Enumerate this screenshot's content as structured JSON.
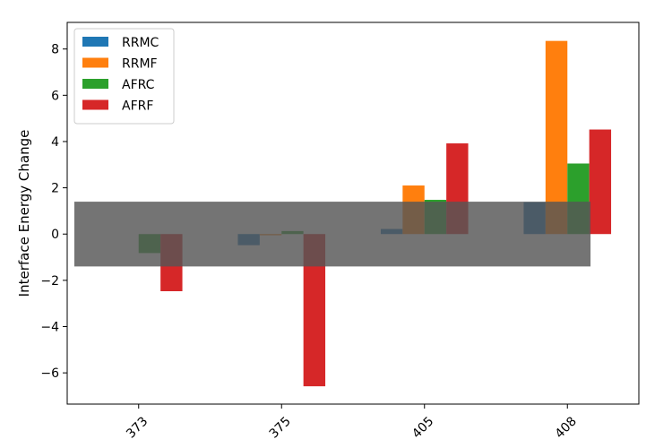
{
  "chart_data": {
    "type": "bar",
    "title": "",
    "xlabel": "",
    "ylabel": "Interface Energy Change",
    "categories": [
      "373",
      "375",
      "405",
      "408"
    ],
    "series": [
      {
        "name": "RRMC",
        "color": "#1f77b4",
        "values": [
          0.0,
          -0.48,
          0.22,
          1.38
        ]
      },
      {
        "name": "RRMF",
        "color": "#ff7f0e",
        "values": [
          0.0,
          -0.05,
          2.1,
          8.35
        ]
      },
      {
        "name": "AFRC",
        "color": "#2ca02c",
        "values": [
          -0.82,
          0.13,
          1.48,
          3.05
        ]
      },
      {
        "name": "AFRF",
        "color": "#d62728",
        "values": [
          -2.47,
          -6.58,
          3.92,
          4.52
        ]
      }
    ],
    "ylim": [
      -7.35,
      9.15
    ],
    "yticks": [
      -6,
      -4,
      -2,
      0,
      2,
      4,
      6,
      8
    ],
    "ytick_labels": [
      "−6",
      "−4",
      "−2",
      "0",
      "2",
      "4",
      "6",
      "8"
    ],
    "band": {
      "y_range": [
        -1.4,
        1.4
      ],
      "color": "#555555",
      "opacity": 0.82
    },
    "legend_position": "top-left",
    "grid": false,
    "xtick_rotation": 45
  }
}
